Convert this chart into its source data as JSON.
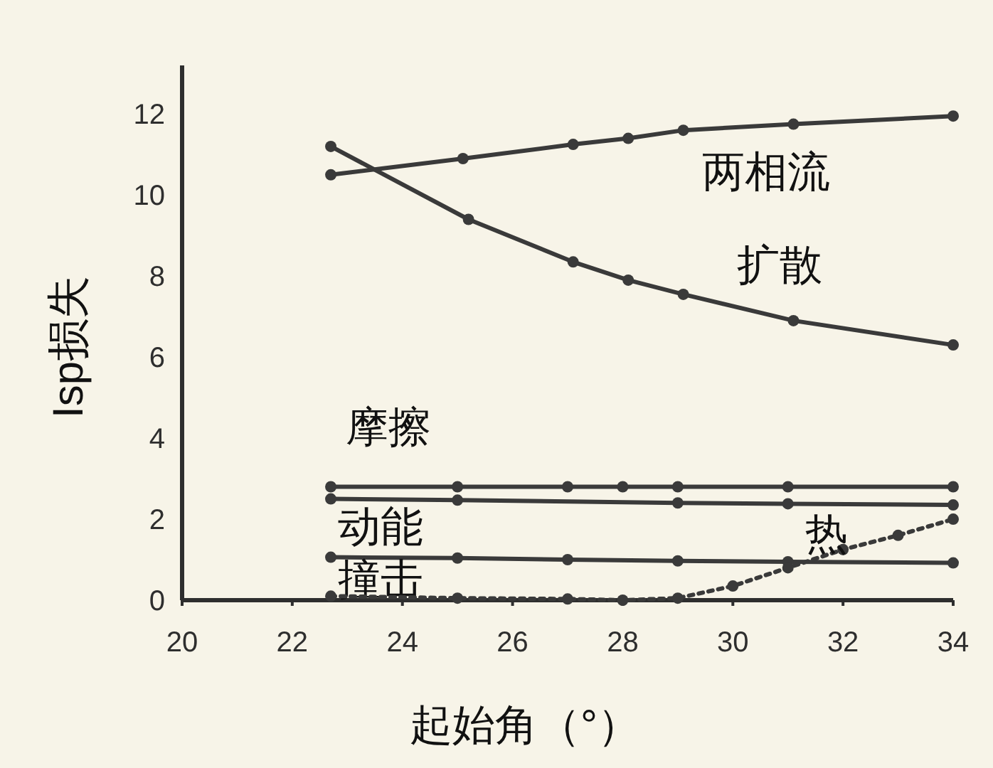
{
  "chart_data": {
    "type": "line",
    "xlabel": "起始角（°）",
    "ylabel": "Isp损失",
    "xlim": [
      20,
      34
    ],
    "ylim": [
      0,
      13.2
    ],
    "xticks": [
      20,
      22,
      24,
      26,
      28,
      30,
      32,
      34
    ],
    "yticks": [
      0,
      2,
      4,
      6,
      8,
      10,
      12
    ],
    "marker": "circle",
    "line_style": "solid",
    "series": [
      {
        "name": "两相流",
        "color": "#3a3a3a",
        "x": [
          22.7,
          25.1,
          27.1,
          28.1,
          29.1,
          31.1,
          34
        ],
        "values": [
          10.5,
          10.9,
          11.25,
          11.4,
          11.6,
          11.75,
          11.95
        ]
      },
      {
        "name": "扩散",
        "color": "#3a3a3a",
        "x": [
          22.7,
          25.2,
          27.1,
          28.1,
          29.1,
          31.1,
          34
        ],
        "values": [
          11.2,
          9.4,
          8.35,
          7.9,
          7.55,
          6.9,
          6.3
        ]
      },
      {
        "name": "摩擦",
        "color": "#3a3a3a",
        "x": [
          22.7,
          25,
          27,
          28,
          29,
          31,
          34
        ],
        "values": [
          2.8,
          2.8,
          2.8,
          2.8,
          2.8,
          2.8,
          2.8
        ]
      },
      {
        "name": "动能",
        "color": "#3a3a3a",
        "x": [
          22.7,
          25,
          29,
          31,
          34
        ],
        "values": [
          2.5,
          2.47,
          2.4,
          2.38,
          2.35
        ]
      },
      {
        "name": "撞击",
        "color": "#3a3a3a",
        "x": [
          22.7,
          25,
          27,
          29,
          31,
          34
        ],
        "values": [
          1.06,
          1.04,
          1.0,
          0.97,
          0.95,
          0.92
        ]
      },
      {
        "name": "热",
        "color": "#3a3a3a",
        "line_style": "dotted",
        "x": [
          22.7,
          25,
          27,
          28,
          29,
          30,
          31,
          32,
          33,
          34
        ],
        "values": [
          0.1,
          0.05,
          0.03,
          0,
          0.05,
          0.35,
          0.8,
          1.25,
          1.6,
          2.0
        ]
      }
    ]
  }
}
